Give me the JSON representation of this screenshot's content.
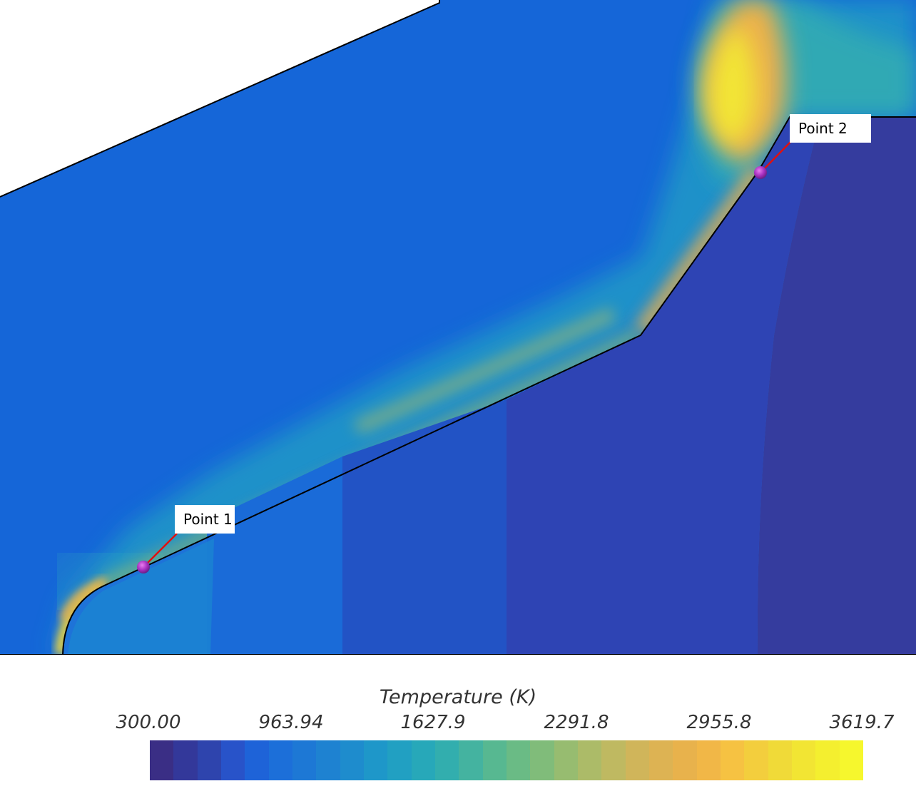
{
  "points": [
    {
      "label": "Point 1"
    },
    {
      "label": "Point 2"
    }
  ],
  "legend": {
    "title": "Temperature (K)",
    "ticks": [
      "300.00",
      "963.94",
      "1627.9",
      "2291.8",
      "2955.8",
      "3619.7"
    ],
    "min": 300.0,
    "max": 3619.7,
    "colors": [
      "#3a2e85",
      "#33389a",
      "#2e44ad",
      "#2853c9",
      "#1e63d8",
      "#1c6fd9",
      "#1d78d5",
      "#1e82d1",
      "#1e8ccd",
      "#1e97c9",
      "#21a0c2",
      "#27a8b9",
      "#32aeae",
      "#44b3a0",
      "#57b891",
      "#6abb85",
      "#80bc7a",
      "#97bc70",
      "#acbb68",
      "#bfb961",
      "#d0b55a",
      "#ddb353",
      "#e8b24c",
      "#f1b747",
      "#f6c242",
      "#f3ce3d",
      "#f0da38",
      "#f2e533",
      "#f4ef2f",
      "#f6f72d"
    ]
  }
}
